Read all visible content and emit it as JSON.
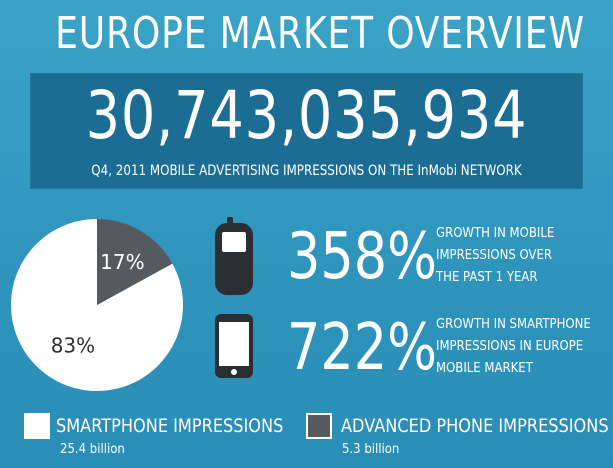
{
  "title": "EUROPE MARKET OVERVIEW",
  "banner": {
    "number": "30,743,035,934",
    "subtitle": "Q4, 2011 MOBILE ADVERTISING IMPRESSIONS ON THE InMobi NETWORK"
  },
  "stats": [
    {
      "icon": "feature-phone-icon",
      "value": "358%",
      "description": "GROWTH IN MOBILE\nIMPRESSIONS OVER\nTHE PAST 1 YEAR"
    },
    {
      "icon": "smartphone-icon",
      "value": "722%",
      "description": "GROWTH IN SMARTPHONE\nIMPRESSIONS IN EUROPE\nMOBILE MARKET"
    }
  ],
  "legend": [
    {
      "label": "SMARTPHONE IMPRESSIONS",
      "value": "25.4 billion",
      "color": "#ffffff"
    },
    {
      "label": "ADVANCED PHONE IMPRESSIONS",
      "value": "5.3 billion",
      "color": "#555a5e"
    }
  ],
  "colors": {
    "background": "#2f95bd",
    "banner": "#1c6d94",
    "smartphone_slice": "#ffffff",
    "advanced_slice": "#555a5e",
    "text": "#ffffff",
    "icon_dark": "#2b2f33"
  },
  "chart_data": {
    "type": "pie",
    "categories": [
      "SMARTPHONE IMPRESSIONS",
      "ADVANCED PHONE IMPRESSIONS"
    ],
    "values": [
      83,
      17
    ],
    "labels": [
      "83%",
      "17%"
    ],
    "colors": [
      "#ffffff",
      "#555a5e"
    ],
    "legend": "bottom"
  }
}
